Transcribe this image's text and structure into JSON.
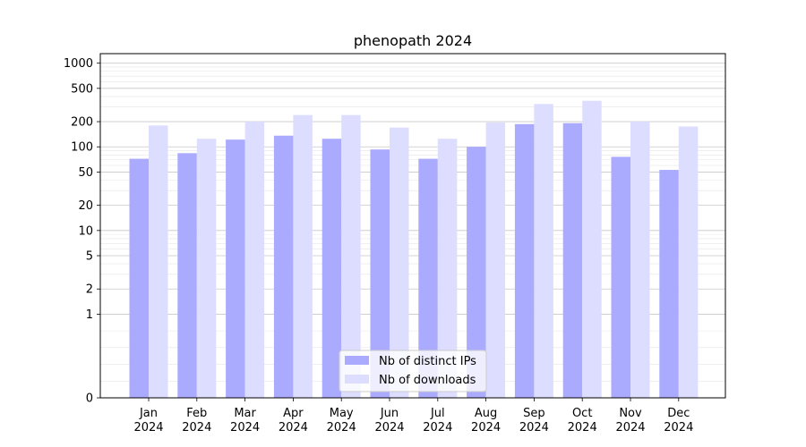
{
  "chart_data": {
    "type": "bar",
    "title": "phenopath 2024",
    "xlabel": "",
    "ylabel": "",
    "yscale": "symlog",
    "ylim": [
      0,
      1300
    ],
    "yticks": [
      0,
      1,
      2,
      5,
      10,
      20,
      50,
      100,
      200,
      500,
      1000
    ],
    "ytick_labels": [
      "0",
      "1",
      "2",
      "5",
      "10",
      "20",
      "50",
      "100",
      "200",
      "500",
      "1000"
    ],
    "categories": [
      "Jan\n2024",
      "Feb\n2024",
      "Mar\n2024",
      "Apr\n2024",
      "May\n2024",
      "Jun\n2024",
      "Jul\n2024",
      "Aug\n2024",
      "Sep\n2024",
      "Oct\n2024",
      "Nov\n2024",
      "Dec\n2024"
    ],
    "series": [
      {
        "name": "Nb of distinct IPs",
        "color": "#aaaaff",
        "values": [
          72,
          84,
          122,
          136,
          125,
          93,
          72,
          100,
          187,
          192,
          76,
          53
        ]
      },
      {
        "name": "Nb of downloads",
        "color": "#ddddff",
        "values": [
          180,
          125,
          200,
          240,
          240,
          170,
          125,
          195,
          325,
          355,
          200,
          175
        ]
      }
    ],
    "grid": true,
    "legend_position": "lower-center"
  }
}
